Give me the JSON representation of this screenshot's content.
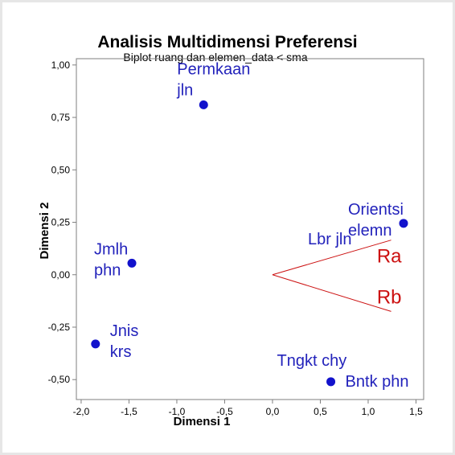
{
  "chart_data": {
    "type": "scatter",
    "title": "Analisis Multidimensi Preferensi",
    "subtitle": "Biplot ruang dan elemen_data < sma",
    "xlabel": "Dimensi 1",
    "ylabel": "Dimensi 2",
    "xlim": [
      -2.05,
      1.58
    ],
    "ylim": [
      -0.595,
      1.03
    ],
    "xticks": [
      -2.0,
      -1.5,
      -1.0,
      -0.5,
      0.0,
      0.5,
      1.0,
      1.5
    ],
    "xtick_labels": [
      "-2,0",
      "-1,5",
      "-1,0",
      "-0,5",
      "0,0",
      "0,5",
      "1,0",
      "1,5"
    ],
    "yticks": [
      -0.5,
      -0.25,
      0.0,
      0.25,
      0.5,
      0.75,
      1.0
    ],
    "ytick_labels": [
      "-0,50",
      "-0,25",
      "0,00",
      "0,25",
      "0,50",
      "0,75",
      "1,00"
    ],
    "grid": false,
    "points": [
      {
        "label": [
          "Permkaan",
          "jln"
        ],
        "x": -0.72,
        "y": 0.81,
        "anchor": "upper-left"
      },
      {
        "label": [
          "Orientsi",
          "elemn"
        ],
        "x": 1.37,
        "y": 0.245,
        "anchor": "left"
      },
      {
        "label": [
          "Lbr jln"
        ],
        "x": 1.37,
        "y": 0.245,
        "anchor": "below-left"
      },
      {
        "label": [
          "Jmlh",
          "phn"
        ],
        "x": -1.47,
        "y": 0.055,
        "anchor": "left"
      },
      {
        "label": [
          "Jnis",
          "krs"
        ],
        "x": -1.85,
        "y": -0.33,
        "anchor": "right"
      },
      {
        "label": [
          "Tngkt chy"
        ],
        "x": 0.61,
        "y": -0.51,
        "anchor": "above-left"
      },
      {
        "label": [
          "Bntk phn"
        ],
        "x": 0.61,
        "y": -0.51,
        "anchor": "right"
      }
    ],
    "vectors": [
      {
        "label": "Ra",
        "x0": 0.0,
        "y0": 0.0,
        "x1": 1.24,
        "y1": 0.165
      },
      {
        "label": "Rb",
        "x0": 0.0,
        "y0": 0.0,
        "x1": 1.24,
        "y1": -0.175
      }
    ],
    "colors": {
      "points": "#1212cc",
      "point_labels": "#2222bb",
      "vectors": "#cc1111",
      "vector_labels": "#cc1111",
      "axes": "#7f7f7f"
    }
  }
}
